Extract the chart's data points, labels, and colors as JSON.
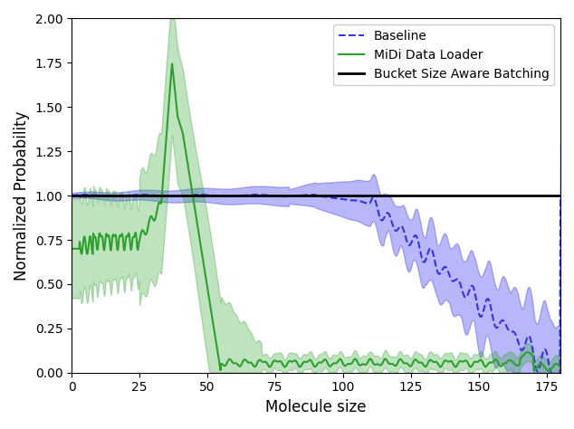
{
  "title": "",
  "xlabel": "Molecule size",
  "ylabel": "Normalized Probability",
  "xlim": [
    0,
    180
  ],
  "ylim": [
    0.0,
    2.0
  ],
  "xticks": [
    0,
    25,
    50,
    75,
    100,
    125,
    150,
    175
  ],
  "yticks": [
    0.0,
    0.25,
    0.5,
    0.75,
    1.0,
    1.25,
    1.5,
    1.75,
    2.0
  ],
  "baseline_color": "#3333ee",
  "midi_color": "#2ca02c",
  "bucket_color": "#000000",
  "baseline_fill_alpha": 0.35,
  "midi_fill_alpha": 0.3,
  "figsize": [
    6.34,
    4.74
  ],
  "dpi": 100,
  "legend_labels": [
    "Baseline",
    "MiDi Data Loader",
    "Bucket Size Aware Batching"
  ],
  "legend_loc": "upper right"
}
